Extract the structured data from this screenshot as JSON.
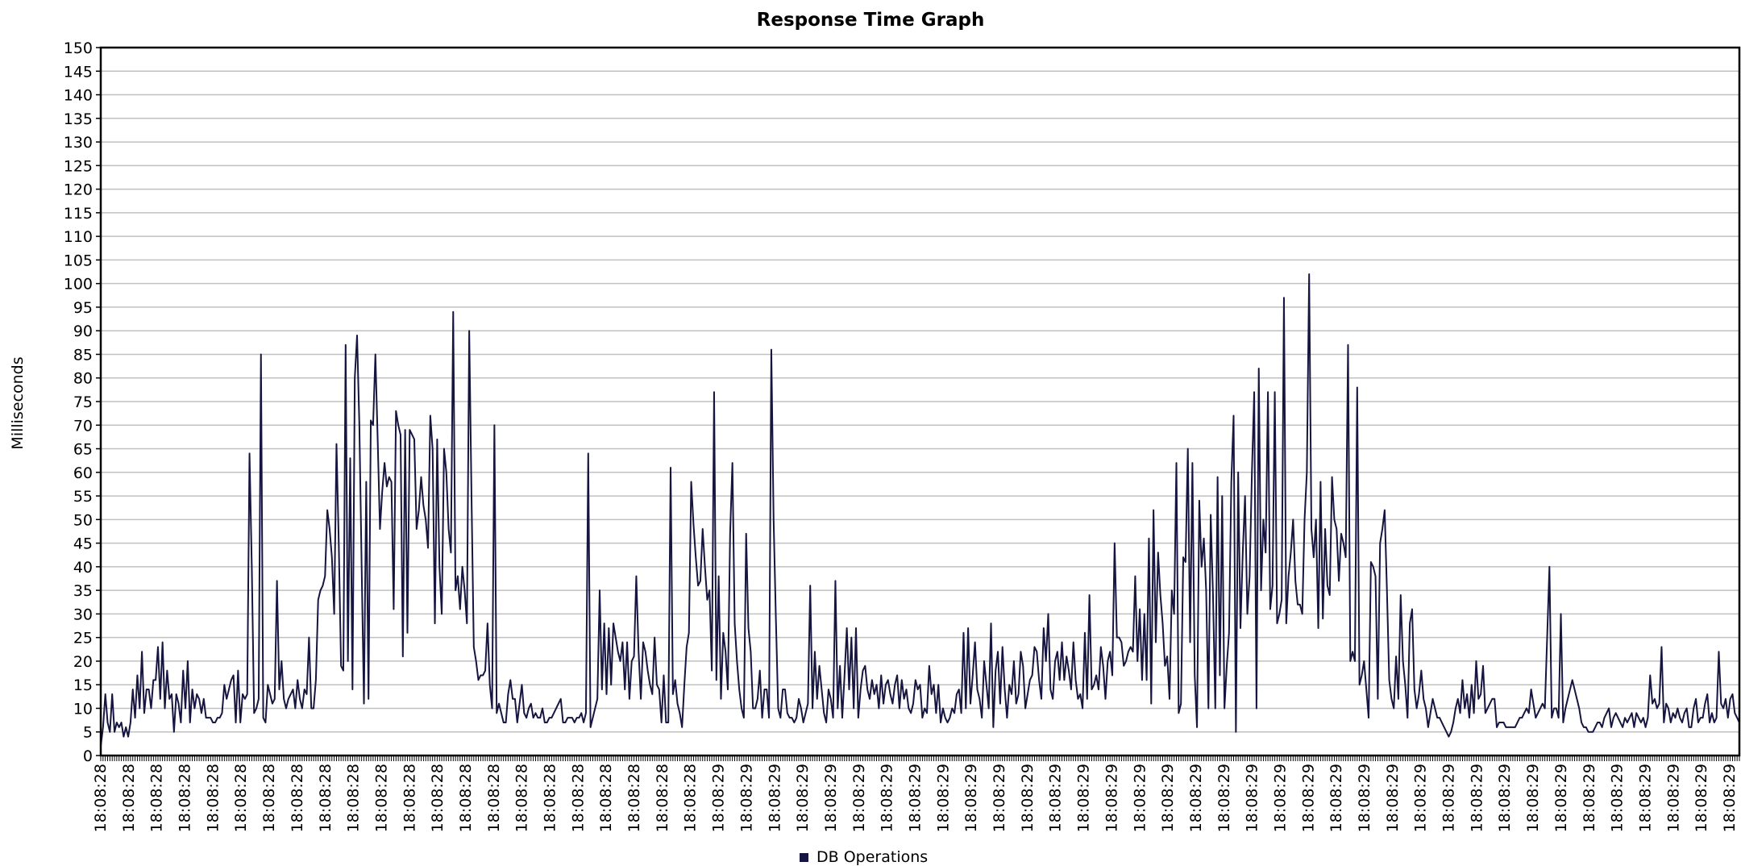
{
  "chart_data": {
    "type": "line",
    "title": "Response Time Graph",
    "ylabel": "Milliseconds",
    "xlabel": "",
    "ylim": [
      0,
      150
    ],
    "ytick_step": 5,
    "grid": true,
    "legend_position": "bottom-center",
    "line_color": "#15153f",
    "grid_color": "#c0c0c0",
    "x_tick_labels": [
      "18:08:28",
      "18:08:28",
      "18:08:28",
      "18:08:28",
      "18:08:28",
      "18:08:28",
      "18:08:28",
      "18:08:28",
      "18:08:28",
      "18:08:28",
      "18:08:28",
      "18:08:28",
      "18:08:28",
      "18:08:28",
      "18:08:28",
      "18:08:28",
      "18:08:28",
      "18:08:28",
      "18:08:28",
      "18:08:28",
      "18:08:28",
      "18:08:28",
      "18:08:29",
      "18:08:29",
      "18:08:29",
      "18:08:29",
      "18:08:29",
      "18:08:29",
      "18:08:29",
      "18:08:29",
      "18:08:29",
      "18:08:29",
      "18:08:29",
      "18:08:29",
      "18:08:29",
      "18:08:29",
      "18:08:29",
      "18:08:29",
      "18:08:29",
      "18:08:29",
      "18:08:29",
      "18:08:29",
      "18:08:29",
      "18:08:29",
      "18:08:29",
      "18:08:29",
      "18:08:29",
      "18:08:29",
      "18:08:29",
      "18:08:29",
      "18:08:29",
      "18:08:29",
      "18:08:29",
      "18:08:29",
      "18:08:29",
      "18:08:29",
      "18:08:29",
      "18:08:29",
      "18:08:29"
    ],
    "series": [
      {
        "name": "DB Operations",
        "values": [
          2,
          6,
          13,
          7,
          5,
          13,
          5,
          7,
          6,
          7,
          4,
          6,
          4,
          7,
          14,
          8,
          17,
          10,
          22,
          9,
          14,
          14,
          10,
          16,
          16,
          23,
          12,
          24,
          10,
          18,
          12,
          13,
          5,
          13,
          11,
          7,
          18,
          10,
          20,
          7,
          14,
          10,
          13,
          12,
          9,
          12,
          8,
          8,
          8,
          7,
          7,
          8,
          8,
          9,
          15,
          12,
          14,
          16,
          17,
          7,
          18,
          7,
          13,
          12,
          13,
          64,
          40,
          9,
          10,
          12,
          85,
          8,
          7,
          15,
          13,
          11,
          12,
          37,
          14,
          20,
          12,
          10,
          12,
          13,
          14,
          10,
          16,
          12,
          10,
          14,
          13,
          25,
          10,
          10,
          16,
          33,
          35,
          36,
          38,
          52,
          48,
          42,
          30,
          66,
          45,
          19,
          18,
          87,
          20,
          63,
          14,
          80,
          89,
          70,
          40,
          11,
          58,
          12,
          71,
          70,
          85,
          67,
          48,
          56,
          62,
          57,
          59,
          58,
          31,
          73,
          70,
          68,
          21,
          69,
          26,
          69,
          68,
          67,
          48,
          52,
          59,
          53,
          50,
          44,
          72,
          65,
          28,
          67,
          40,
          30,
          65,
          60,
          48,
          43,
          94,
          35,
          38,
          31,
          40,
          35,
          28,
          90,
          55,
          23,
          20,
          16,
          17,
          17,
          18,
          28,
          15,
          10,
          70,
          9,
          11,
          9,
          7,
          7,
          13,
          16,
          12,
          12,
          7,
          11,
          15,
          9,
          8,
          10,
          11,
          8,
          9,
          8,
          8,
          10,
          7,
          7,
          8,
          8,
          9,
          10,
          11,
          12,
          7,
          7,
          8,
          8,
          8,
          7,
          8,
          8,
          9,
          7,
          9,
          64,
          6,
          8,
          10,
          12,
          35,
          14,
          28,
          13,
          27,
          15,
          28,
          25,
          22,
          20,
          24,
          14,
          24,
          12,
          20,
          21,
          38,
          22,
          12,
          24,
          22,
          18,
          15,
          13,
          25,
          15,
          14,
          7,
          17,
          7,
          7,
          61,
          13,
          16,
          11,
          9,
          6,
          15,
          23,
          26,
          58,
          49,
          42,
          36,
          37,
          48,
          40,
          33,
          35,
          18,
          77,
          16,
          38,
          12,
          26,
          22,
          14,
          47,
          62,
          28,
          20,
          14,
          10,
          8,
          47,
          27,
          22,
          10,
          10,
          12,
          18,
          8,
          14,
          14,
          8,
          86,
          50,
          29,
          10,
          8,
          14,
          14,
          9,
          8,
          8,
          7,
          8,
          12,
          10,
          7,
          9,
          11,
          36,
          10,
          22,
          12,
          19,
          14,
          9,
          7,
          14,
          12,
          8,
          37,
          10,
          19,
          8,
          17,
          27,
          14,
          25,
          10,
          27,
          8,
          14,
          18,
          19,
          14,
          12,
          16,
          13,
          15,
          10,
          17,
          11,
          15,
          16,
          13,
          11,
          15,
          17,
          10,
          16,
          12,
          14,
          10,
          9,
          11,
          16,
          14,
          15,
          8,
          10,
          9,
          19,
          13,
          15,
          9,
          15,
          7,
          10,
          8,
          7,
          8,
          10,
          9,
          13,
          14,
          9,
          26,
          10,
          27,
          11,
          17,
          24,
          14,
          12,
          8,
          20,
          15,
          10,
          28,
          6,
          18,
          22,
          11,
          23,
          14,
          8,
          15,
          13,
          20,
          11,
          13,
          22,
          19,
          10,
          13,
          16,
          17,
          23,
          22,
          16,
          12,
          27,
          20,
          30,
          14,
          12,
          20,
          22,
          16,
          24,
          16,
          21,
          18,
          14,
          24,
          16,
          12,
          13,
          10,
          26,
          12,
          34,
          14,
          15,
          17,
          14,
          23,
          19,
          12,
          20,
          22,
          17,
          45,
          25,
          25,
          24,
          19,
          20,
          22,
          23,
          22,
          38,
          20,
          31,
          16,
          30,
          16,
          46,
          11,
          52,
          24,
          43,
          34,
          28,
          19,
          21,
          12,
          35,
          30,
          62,
          9,
          11,
          42,
          41,
          65,
          24,
          62,
          17,
          6,
          54,
          40,
          46,
          35,
          10,
          51,
          34,
          10,
          59,
          17,
          55,
          10,
          19,
          26,
          58,
          72,
          5,
          60,
          27,
          43,
          55,
          30,
          38,
          60,
          77,
          10,
          82,
          35,
          50,
          43,
          77,
          31,
          36,
          77,
          28,
          30,
          33,
          97,
          28,
          38,
          43,
          50,
          37,
          32,
          32,
          30,
          50,
          60,
          102,
          48,
          42,
          50,
          27,
          58,
          29,
          48,
          36,
          34,
          59,
          50,
          48,
          37,
          47,
          45,
          42,
          87,
          20,
          22,
          20,
          78,
          15,
          17,
          20,
          14,
          8,
          41,
          40,
          38,
          12,
          45,
          48,
          52,
          35,
          16,
          12,
          10,
          21,
          12,
          34,
          20,
          15,
          8,
          28,
          31,
          14,
          10,
          13,
          18,
          12,
          10,
          6,
          9,
          12,
          10,
          8,
          8,
          7,
          6,
          5,
          4,
          5,
          7,
          10,
          12,
          9,
          16,
          10,
          13,
          8,
          15,
          9,
          20,
          12,
          13,
          19,
          9,
          10,
          11,
          12,
          12,
          6,
          7,
          7,
          7,
          6,
          6,
          6,
          6,
          6,
          7,
          8,
          8,
          9,
          10,
          9,
          14,
          11,
          8,
          9,
          10,
          11,
          10,
          25,
          40,
          8,
          10,
          10,
          8,
          30,
          7,
          10,
          12,
          14,
          16,
          14,
          12,
          10,
          7,
          6,
          6,
          5,
          5,
          5,
          6,
          7,
          7,
          6,
          8,
          9,
          10,
          6,
          8,
          9,
          8,
          7,
          6,
          8,
          7,
          8,
          9,
          6,
          9,
          8,
          7,
          8,
          6,
          8,
          17,
          11,
          12,
          10,
          11,
          23,
          7,
          11,
          10,
          7,
          9,
          8,
          10,
          8,
          7,
          9,
          10,
          6,
          6,
          10,
          12,
          7,
          8,
          8,
          11,
          13,
          7,
          9,
          7,
          8,
          22,
          11,
          10,
          12,
          8,
          12,
          13,
          9,
          8,
          7
        ]
      }
    ]
  }
}
